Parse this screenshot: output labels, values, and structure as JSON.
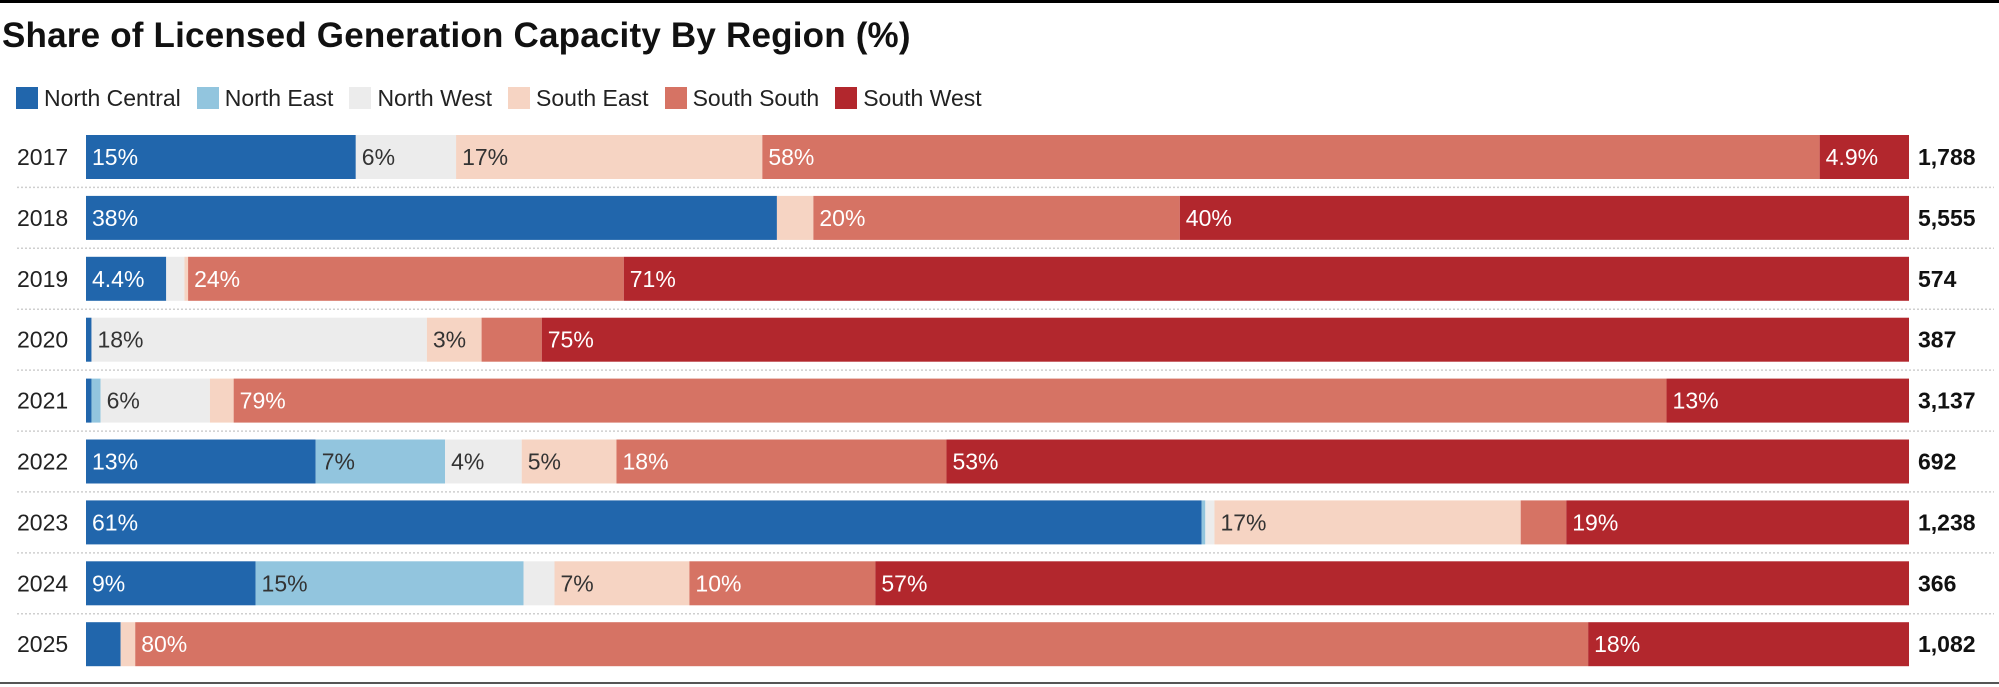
{
  "chart_data": {
    "type": "bar",
    "orientation": "horizontal",
    "stacked": true,
    "normalized": true,
    "title": "Share of Licensed Generation Capacity By Region (%)",
    "xlabel": "",
    "ylabel": "",
    "xlim": [
      0,
      100
    ],
    "legend_position": "top-left",
    "categories": [
      "2017",
      "2018",
      "2019",
      "2020",
      "2021",
      "2022",
      "2023",
      "2024",
      "2025"
    ],
    "totals": [
      "1,788",
      "5,555",
      "574",
      "387",
      "3,137",
      "692",
      "1,238",
      "366",
      "1,082"
    ],
    "series": [
      {
        "name": "North Central",
        "color": "#2166ac",
        "text_color": "#ffffff",
        "values": [
          14.8,
          37.9,
          4.4,
          0.3,
          0.3,
          12.6,
          61.2,
          9.3,
          1.9
        ],
        "labels": [
          "15%",
          "38%",
          "4.4%",
          "",
          "",
          "13%",
          "61%",
          "9%",
          ""
        ]
      },
      {
        "name": "North East",
        "color": "#92c5de",
        "text_color": "#333333",
        "values": [
          0,
          0,
          0,
          0,
          0.5,
          7.1,
          0.2,
          14.7,
          0
        ],
        "labels": [
          "",
          "",
          "",
          "",
          "",
          "7%",
          "",
          "15%",
          ""
        ]
      },
      {
        "name": "North West",
        "color": "#ececec",
        "text_color": "#333333",
        "values": [
          5.5,
          0,
          1.0,
          18.4,
          6.0,
          4.2,
          0.5,
          1.7,
          0
        ],
        "labels": [
          "6%",
          "",
          "",
          "18%",
          "6%",
          "4%",
          "",
          "",
          ""
        ]
      },
      {
        "name": "South East",
        "color": "#f6d4c3",
        "text_color": "#333333",
        "values": [
          16.8,
          2.0,
          0.2,
          3.0,
          1.3,
          5.2,
          16.8,
          7.4,
          0.8
        ],
        "labels": [
          "17%",
          "",
          "",
          "3%",
          "",
          "5%",
          "17%",
          "7%",
          ""
        ]
      },
      {
        "name": "South South",
        "color": "#d67364",
        "text_color": "#ffffff",
        "values": [
          58.0,
          20.1,
          23.9,
          3.3,
          78.6,
          18.1,
          2.5,
          10.2,
          79.7
        ],
        "labels": [
          "58%",
          "20%",
          "24%",
          "",
          "79%",
          "18%",
          "",
          "10%",
          "80%"
        ]
      },
      {
        "name": "South West",
        "color": "#b2272d",
        "text_color": "#ffffff",
        "values": [
          4.9,
          40.0,
          70.5,
          75.0,
          13.3,
          52.8,
          18.8,
          56.7,
          17.6
        ],
        "labels": [
          "4.9%",
          "40%",
          "71%",
          "75%",
          "13%",
          "53%",
          "19%",
          "57%",
          "18%"
        ]
      }
    ]
  },
  "colors": {
    "top_rule": "#000000",
    "separator": "#cfcfcf",
    "year_text": "#222222",
    "total_text": "#111111"
  }
}
